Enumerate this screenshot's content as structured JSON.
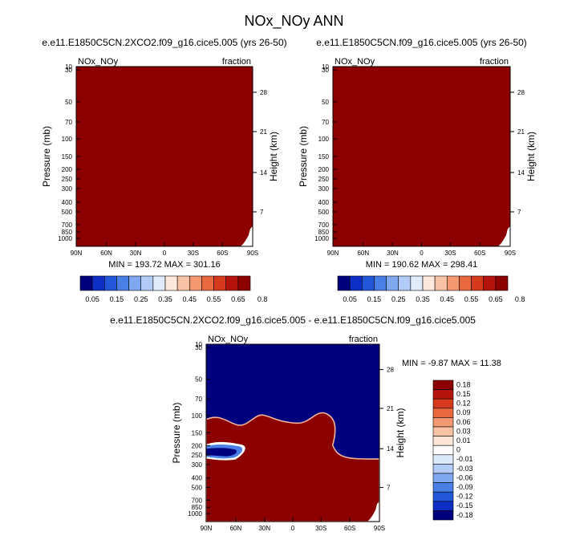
{
  "figure": {
    "title": "NOx_NOy ANN"
  },
  "colors": {
    "frame": "#000000",
    "background": "#ffffff",
    "absolute_scale": [
      "#00007f",
      "#0d2fc5",
      "#2257d9",
      "#4a7fe6",
      "#80a8f0",
      "#b2ccf7",
      "#e0ecfc",
      "#fde8dc",
      "#f8c2a6",
      "#f29770",
      "#e8693f",
      "#d63a1c",
      "#b5140c",
      "#8c0000"
    ],
    "diff_scale": [
      "#00007f",
      "#0d2fc5",
      "#2257d9",
      "#4a7fe6",
      "#80a8f0",
      "#b2ccf7",
      "#dce9fb",
      "#ffffff",
      "#fde6d8",
      "#f9c3a6",
      "#f29974",
      "#e8683f",
      "#d63a1c",
      "#b5140c",
      "#8c0000"
    ]
  },
  "chart_data": [
    {
      "type": "heatmap",
      "title": "e.e11.E1850C5CN.2XCO2.f09_g16.cice5.005 (yrs 26-50)",
      "left_label": "NOx_NOy",
      "right_label": "fraction",
      "xlabel": "",
      "ylabel": "Pressure (mb)",
      "ylabel_right": "Height (km)",
      "x_ticks": [
        "90N",
        "60N",
        "30N",
        "0",
        "30S",
        "60S",
        "90S"
      ],
      "x_ticks_deg": [
        90,
        60,
        30,
        0,
        -30,
        -60,
        -90
      ],
      "y_ticks": [
        "10",
        "30",
        "50",
        "70",
        "100",
        "150",
        "200",
        "250",
        "300",
        "400",
        "500",
        "700",
        "850",
        "1000"
      ],
      "y_ticks_mb": [
        10,
        30,
        50,
        70,
        100,
        150,
        200,
        250,
        300,
        400,
        500,
        700,
        850,
        1000
      ],
      "ylim_mb": [
        1000,
        10
      ],
      "height_ticks": [
        "28",
        "21",
        "14",
        "7"
      ],
      "height_ticks_km": [
        28,
        21,
        14,
        7
      ],
      "stats": "MIN = 193.72  MAX = 301.16",
      "min": 193.72,
      "max": 301.16,
      "field_value": 0.8,
      "colorbar": {
        "orientation": "horizontal",
        "labels": [
          "0.05",
          "0.15",
          "0.25",
          "0.35",
          "0.45",
          "0.55",
          "0.65",
          "0.8"
        ]
      }
    },
    {
      "type": "heatmap",
      "title": "e.e11.E1850C5CN.f09_g16.cice5.005 (yrs 26-50)",
      "left_label": "NOx_NOy",
      "right_label": "fraction",
      "xlabel": "",
      "ylabel": "Pressure (mb)",
      "ylabel_right": "Height (km)",
      "x_ticks": [
        "90N",
        "60N",
        "30N",
        "0",
        "30S",
        "60S",
        "90S"
      ],
      "x_ticks_deg": [
        90,
        60,
        30,
        0,
        -30,
        -60,
        -90
      ],
      "y_ticks": [
        "10",
        "30",
        "50",
        "70",
        "100",
        "150",
        "200",
        "250",
        "300",
        "400",
        "500",
        "700",
        "850",
        "1000"
      ],
      "y_ticks_mb": [
        10,
        30,
        50,
        70,
        100,
        150,
        200,
        250,
        300,
        400,
        500,
        700,
        850,
        1000
      ],
      "ylim_mb": [
        1000,
        10
      ],
      "height_ticks": [
        "28",
        "21",
        "14",
        "7"
      ],
      "height_ticks_km": [
        28,
        21,
        14,
        7
      ],
      "stats": "MIN = 190.62  MAX = 298.41",
      "min": 190.62,
      "max": 298.41,
      "field_value": 0.8,
      "colorbar": {
        "orientation": "horizontal",
        "labels": [
          "0.05",
          "0.15",
          "0.25",
          "0.35",
          "0.45",
          "0.55",
          "0.65",
          "0.8"
        ]
      }
    },
    {
      "type": "heatmap",
      "title": "e.e11.E1850C5CN.2XCO2.f09_g16.cice5.005 - e.e11.E1850C5CN.f09_g16.cice5.005",
      "left_label": "NOx_NOy",
      "right_label": "fraction",
      "xlabel": "",
      "ylabel": "Pressure (mb)",
      "ylabel_right": "Height (km)",
      "x_ticks": [
        "90N",
        "60N",
        "30N",
        "0",
        "30S",
        "60S",
        "90S"
      ],
      "x_ticks_deg": [
        90,
        60,
        30,
        0,
        -30,
        -60,
        -90
      ],
      "y_ticks": [
        "10",
        "30",
        "50",
        "70",
        "100",
        "150",
        "200",
        "250",
        "300",
        "400",
        "500",
        "700",
        "850",
        "1000"
      ],
      "y_ticks_mb": [
        10,
        30,
        50,
        70,
        100,
        150,
        200,
        250,
        300,
        400,
        500,
        700,
        850,
        1000
      ],
      "ylim_mb": [
        1000,
        10
      ],
      "height_ticks": [
        "28",
        "21",
        "14",
        "7"
      ],
      "height_ticks_km": [
        28,
        21,
        14,
        7
      ],
      "stats": "MIN = -9.87   MAX = 11.38",
      "min": -9.87,
      "max": 11.38,
      "upper_region_value": -0.18,
      "lower_region_value": 0.18,
      "colorbar": {
        "orientation": "vertical",
        "labels": [
          "0.18",
          "0.15",
          "0.12",
          "0.09",
          "0.06",
          "0.03",
          "0.01",
          "0",
          "-0.01",
          "-0.03",
          "-0.06",
          "-0.09",
          "-0.12",
          "-0.15",
          "-0.18"
        ]
      }
    }
  ]
}
